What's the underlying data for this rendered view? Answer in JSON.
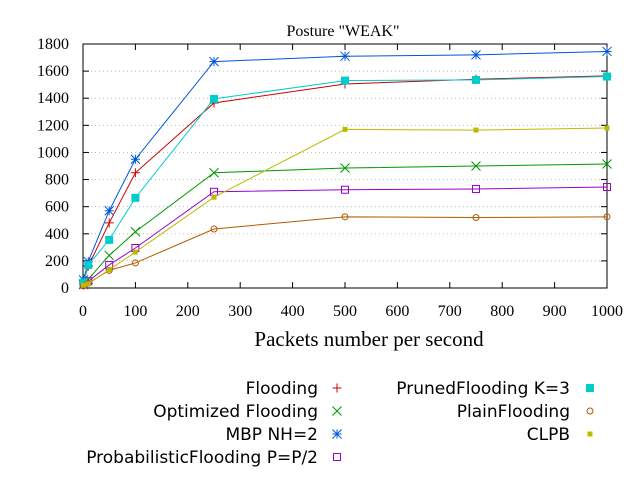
{
  "chart_data": {
    "type": "line",
    "title": "Posture \"WEAK\"",
    "xlabel": "Packets number per second",
    "ylabel": "",
    "xlim": [
      0,
      1000
    ],
    "ylim": [
      0,
      1800
    ],
    "xticks": [
      "0",
      "100",
      "200",
      "300",
      "400",
      "500",
      "600",
      "700",
      "800",
      "900",
      "1000"
    ],
    "yticks": [
      "0",
      "200",
      "400",
      "600",
      "800",
      "1000",
      "1200",
      "1400",
      "1600",
      "1800"
    ],
    "x": [
      1,
      10,
      50,
      100,
      250,
      500,
      750,
      1000
    ],
    "series": [
      {
        "name": "Flooding",
        "color": "#cc0000",
        "marker": "plus",
        "values": [
          45,
          160,
          480,
          850,
          1365,
          1505,
          1540,
          1565
        ]
      },
      {
        "name": "Optimized Flooding",
        "color": "#009900",
        "marker": "cross",
        "values": [
          25,
          65,
          240,
          415,
          850,
          885,
          900,
          915
        ]
      },
      {
        "name": "MBP NH=2",
        "color": "#0055dd",
        "marker": "star",
        "values": [
          60,
          195,
          570,
          950,
          1670,
          1710,
          1720,
          1745
        ]
      },
      {
        "name": "ProbabilisticFlooding P=P/2",
        "color": "#9900cc",
        "marker": "square-open",
        "values": [
          25,
          50,
          170,
          295,
          710,
          725,
          730,
          745
        ]
      },
      {
        "name": "PrunedFlooding K=3",
        "color": "#00cccc",
        "marker": "square-filled",
        "values": [
          40,
          170,
          355,
          665,
          1395,
          1530,
          1535,
          1560
        ]
      },
      {
        "name": "PlainFlooding",
        "color": "#b35900",
        "marker": "circle-open",
        "values": [
          15,
          35,
          130,
          185,
          435,
          525,
          520,
          525
        ]
      },
      {
        "name": "CLPB",
        "color": "#bbbb00",
        "marker": "square-small",
        "values": [
          20,
          30,
          135,
          265,
          670,
          1170,
          1165,
          1180
        ]
      }
    ]
  }
}
